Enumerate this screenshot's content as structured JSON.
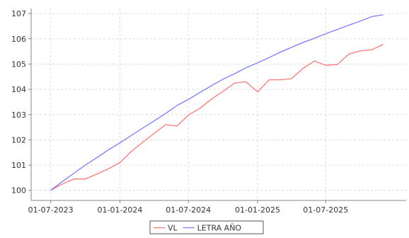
{
  "chart_data": {
    "type": "line",
    "title": "",
    "xlabel": "",
    "ylabel": "",
    "x_tick_labels": [
      "01-07-2023",
      "01-01-2024",
      "01-07-2024",
      "01-01-2025",
      "01-07-2025"
    ],
    "x_ticks": [
      "2023-07-01",
      "2024-01-01",
      "2024-07-01",
      "2025-01-01",
      "2025-07-01"
    ],
    "y_ticks": [
      100,
      101,
      102,
      103,
      104,
      105,
      106,
      107
    ],
    "xlim": [
      "2023-05-10",
      "2026-01-31"
    ],
    "ylim": [
      99.6,
      107.2
    ],
    "grid": true,
    "legend_position": "bottom-center",
    "series": [
      {
        "name": "VL",
        "color": "#ff7777",
        "x": [
          "2023-07-01",
          "2023-08-01",
          "2023-09-01",
          "2023-10-01",
          "2023-11-01",
          "2023-12-01",
          "2024-01-01",
          "2024-02-01",
          "2024-03-01",
          "2024-04-01",
          "2024-05-01",
          "2024-06-01",
          "2024-07-01",
          "2024-08-01",
          "2024-09-01",
          "2024-10-01",
          "2024-11-01",
          "2024-12-01",
          "2025-01-01",
          "2025-02-01",
          "2025-03-01",
          "2025-04-01",
          "2025-05-01",
          "2025-06-01",
          "2025-07-01",
          "2025-08-01",
          "2025-09-01",
          "2025-10-01",
          "2025-11-01",
          "2025-12-01"
        ],
        "values": [
          100.0,
          100.25,
          100.45,
          100.45,
          100.65,
          100.85,
          101.1,
          101.55,
          101.9,
          102.25,
          102.6,
          102.55,
          102.98,
          103.25,
          103.62,
          103.92,
          104.25,
          104.3,
          103.9,
          104.38,
          104.38,
          104.42,
          104.82,
          105.12,
          104.95,
          104.98,
          105.4,
          105.52,
          105.57,
          105.78
        ]
      },
      {
        "name": "LETRA AÑO",
        "color": "#7b7bff",
        "x": [
          "2023-07-01",
          "2023-08-01",
          "2023-09-01",
          "2023-10-01",
          "2023-11-01",
          "2023-12-01",
          "2024-01-01",
          "2024-02-01",
          "2024-03-01",
          "2024-04-01",
          "2024-05-01",
          "2024-06-01",
          "2024-07-01",
          "2024-08-01",
          "2024-09-01",
          "2024-10-01",
          "2024-11-01",
          "2024-12-01",
          "2025-01-01",
          "2025-02-01",
          "2025-03-01",
          "2025-04-01",
          "2025-05-01",
          "2025-06-01",
          "2025-07-01",
          "2025-08-01",
          "2025-09-01",
          "2025-10-01",
          "2025-11-01",
          "2025-12-01"
        ],
        "values": [
          100.0,
          100.35,
          100.68,
          101.0,
          101.3,
          101.6,
          101.88,
          102.18,
          102.46,
          102.75,
          103.04,
          103.36,
          103.6,
          103.88,
          104.15,
          104.4,
          104.62,
          104.85,
          105.05,
          105.26,
          105.46,
          105.66,
          105.85,
          106.02,
          106.2,
          106.37,
          106.54,
          106.7,
          106.88,
          106.95
        ]
      }
    ]
  }
}
